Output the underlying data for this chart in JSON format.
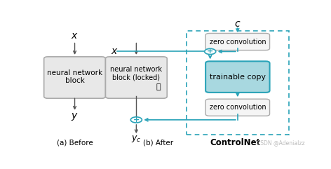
{
  "bg_color": "#ffffff",
  "arrow_color": "#555555",
  "teal_color": "#2aa3b8",
  "box_gray_color": "#e8e8e8",
  "box_teal_color": "#a8d8e0",
  "dashed_border_color": "#2aa3b8",
  "text_color": "#000000",
  "caption_left": "(a) Before",
  "caption_right": "(b) After",
  "controlnet_label": "ControlNet",
  "watermark": "CSDN @Adenialzz"
}
